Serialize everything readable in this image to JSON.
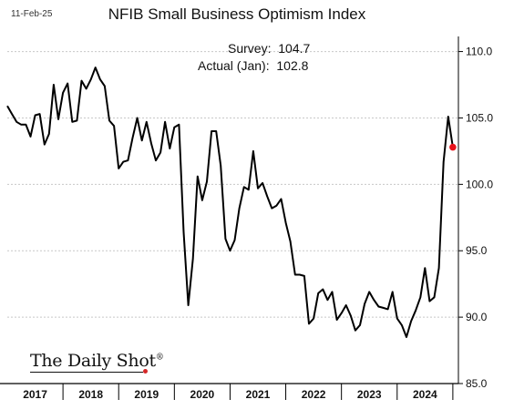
{
  "header": {
    "date": "11-Feb-25",
    "title": "NFIB Small Business Optimism Index"
  },
  "annotations": {
    "survey": "Survey:  104.7",
    "actual": "Actual (Jan):  102.8"
  },
  "branding": {
    "name": "The Daily Shot",
    "mark": "®"
  },
  "colors": {
    "line": "#000000",
    "marker": "#e8121b",
    "grid": "#c8c8c8",
    "axis": "#000000"
  },
  "chart_data": {
    "type": "line",
    "title": "NFIB Small Business Optimism Index",
    "ylim": [
      85,
      111
    ],
    "yticks": [
      "85.0",
      "90.0",
      "95.0",
      "100.0",
      "105.0",
      "110.0"
    ],
    "ytick_values": [
      85,
      90,
      95,
      100,
      105,
      110
    ],
    "y_axis_side": "right",
    "grid": "horizontal",
    "xlim": [
      2017,
      2025.1
    ],
    "xtick_labels": [
      "2017",
      "2018",
      "2019",
      "2020",
      "2021",
      "2022",
      "2023",
      "2024"
    ],
    "xtick_centers": [
      2017.5,
      2018.5,
      2019.5,
      2020.5,
      2021.5,
      2022.5,
      2023.5,
      2024.5
    ],
    "series": [
      {
        "values": [
          [
            2017.0,
            105.9
          ],
          [
            2017.083,
            105.3
          ],
          [
            2017.167,
            104.7
          ],
          [
            2017.25,
            104.5
          ],
          [
            2017.333,
            104.5
          ],
          [
            2017.417,
            103.6
          ],
          [
            2017.5,
            105.2
          ],
          [
            2017.583,
            105.3
          ],
          [
            2017.667,
            103.0
          ],
          [
            2017.75,
            103.8
          ],
          [
            2017.833,
            107.5
          ],
          [
            2017.917,
            104.9
          ],
          [
            2018.0,
            106.9
          ],
          [
            2018.083,
            107.6
          ],
          [
            2018.167,
            104.7
          ],
          [
            2018.25,
            104.8
          ],
          [
            2018.333,
            107.8
          ],
          [
            2018.417,
            107.2
          ],
          [
            2018.5,
            107.9
          ],
          [
            2018.583,
            108.8
          ],
          [
            2018.667,
            107.9
          ],
          [
            2018.75,
            107.4
          ],
          [
            2018.833,
            104.8
          ],
          [
            2018.917,
            104.4
          ],
          [
            2019.0,
            101.2
          ],
          [
            2019.083,
            101.7
          ],
          [
            2019.167,
            101.8
          ],
          [
            2019.25,
            103.5
          ],
          [
            2019.333,
            105.0
          ],
          [
            2019.417,
            103.3
          ],
          [
            2019.5,
            104.7
          ],
          [
            2019.583,
            103.1
          ],
          [
            2019.667,
            101.8
          ],
          [
            2019.75,
            102.4
          ],
          [
            2019.833,
            104.7
          ],
          [
            2019.917,
            102.7
          ],
          [
            2020.0,
            104.3
          ],
          [
            2020.083,
            104.5
          ],
          [
            2020.167,
            96.4
          ],
          [
            2020.25,
            90.9
          ],
          [
            2020.333,
            94.4
          ],
          [
            2020.417,
            100.6
          ],
          [
            2020.5,
            98.8
          ],
          [
            2020.583,
            100.2
          ],
          [
            2020.667,
            104.0
          ],
          [
            2020.75,
            104.0
          ],
          [
            2020.833,
            101.4
          ],
          [
            2020.917,
            95.9
          ],
          [
            2021.0,
            95.0
          ],
          [
            2021.083,
            95.8
          ],
          [
            2021.167,
            98.2
          ],
          [
            2021.25,
            99.8
          ],
          [
            2021.333,
            99.6
          ],
          [
            2021.417,
            102.5
          ],
          [
            2021.5,
            99.7
          ],
          [
            2021.583,
            100.1
          ],
          [
            2021.667,
            99.1
          ],
          [
            2021.75,
            98.2
          ],
          [
            2021.833,
            98.4
          ],
          [
            2021.917,
            98.9
          ],
          [
            2022.0,
            97.1
          ],
          [
            2022.083,
            95.7
          ],
          [
            2022.167,
            93.2
          ],
          [
            2022.25,
            93.2
          ],
          [
            2022.333,
            93.1
          ],
          [
            2022.417,
            89.5
          ],
          [
            2022.5,
            89.9
          ],
          [
            2022.583,
            91.8
          ],
          [
            2022.667,
            92.1
          ],
          [
            2022.75,
            91.3
          ],
          [
            2022.833,
            91.9
          ],
          [
            2022.917,
            89.8
          ],
          [
            2023.0,
            90.3
          ],
          [
            2023.083,
            90.9
          ],
          [
            2023.167,
            90.1
          ],
          [
            2023.25,
            89.0
          ],
          [
            2023.333,
            89.4
          ],
          [
            2023.417,
            91.0
          ],
          [
            2023.5,
            91.9
          ],
          [
            2023.583,
            91.3
          ],
          [
            2023.667,
            90.8
          ],
          [
            2023.75,
            90.7
          ],
          [
            2023.833,
            90.6
          ],
          [
            2023.917,
            91.9
          ],
          [
            2024.0,
            89.9
          ],
          [
            2024.083,
            89.4
          ],
          [
            2024.167,
            88.5
          ],
          [
            2024.25,
            89.7
          ],
          [
            2024.333,
            90.5
          ],
          [
            2024.417,
            91.5
          ],
          [
            2024.5,
            93.7
          ],
          [
            2024.583,
            91.2
          ],
          [
            2024.667,
            91.5
          ],
          [
            2024.75,
            93.7
          ],
          [
            2024.833,
            101.7
          ],
          [
            2024.917,
            105.1
          ],
          [
            2025.0,
            102.8
          ]
        ]
      }
    ],
    "highlight_point": [
      2025.0,
      102.8
    ]
  }
}
